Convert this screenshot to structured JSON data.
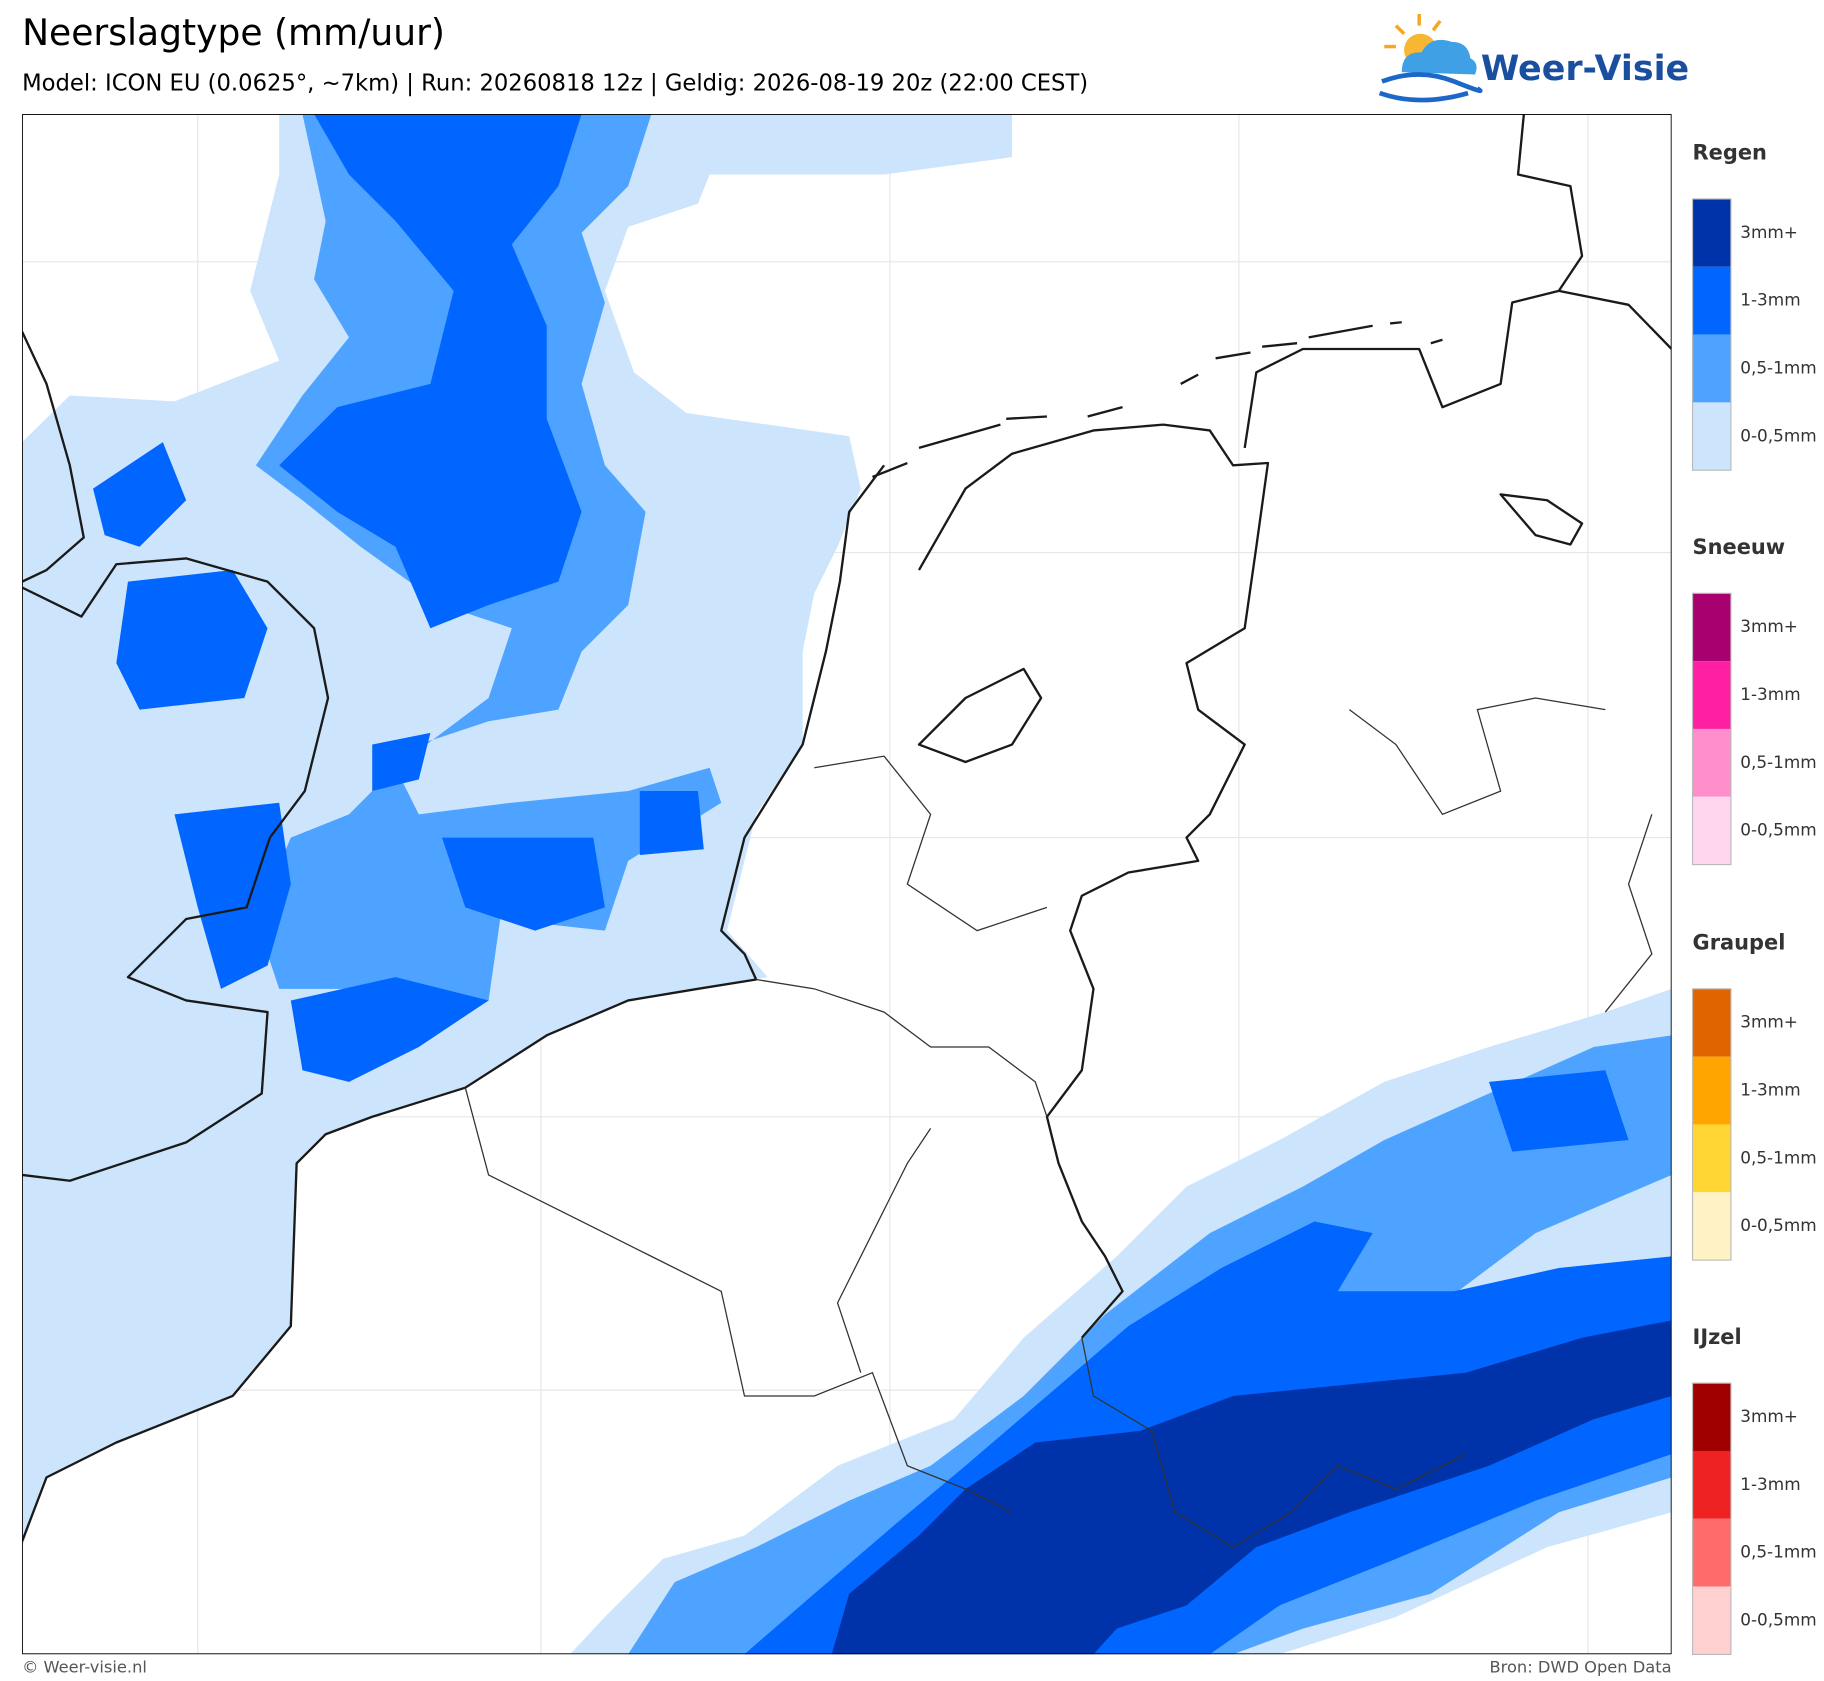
{
  "header": {
    "title": "Neerslagtype (mm/uur)",
    "subtitle": "Model: ICON EU (0.0625°, ~7km)  |  Run: 20260818 12z  |  Geldig: 2026-08-19 20z (22:00 CEST)"
  },
  "logo": {
    "text": "Weer-Visie"
  },
  "legend": [
    {
      "title": "Regen",
      "items": [
        "3mm+",
        "1-3mm",
        "0,5-1mm",
        "0-0,5mm"
      ],
      "colors": [
        "#0033aa",
        "#0066ff",
        "#4da3ff",
        "#cce4fc"
      ]
    },
    {
      "title": "Sneeuw",
      "items": [
        "3mm+",
        "1-3mm",
        "0,5-1mm",
        "0-0,5mm"
      ],
      "colors": [
        "#a8006e",
        "#ff1fa3",
        "#ff8fcc",
        "#ffd6ee"
      ]
    },
    {
      "title": "Graupel",
      "items": [
        "3mm+",
        "1-3mm",
        "0,5-1mm",
        "0-0,5mm"
      ],
      "colors": [
        "#e06400",
        "#ffa500",
        "#ffd633",
        "#fff2c4"
      ]
    },
    {
      "title": "IJzel",
      "items": [
        "3mm+",
        "1-3mm",
        "0,5-1mm",
        "0-0,5mm"
      ],
      "colors": [
        "#a00000",
        "#ee2222",
        "#ff6b6b",
        "#ffd0d0"
      ]
    }
  ],
  "footer": {
    "left": "© Weer-visie.nl",
    "right": "Bron: DWD Open Data"
  }
}
